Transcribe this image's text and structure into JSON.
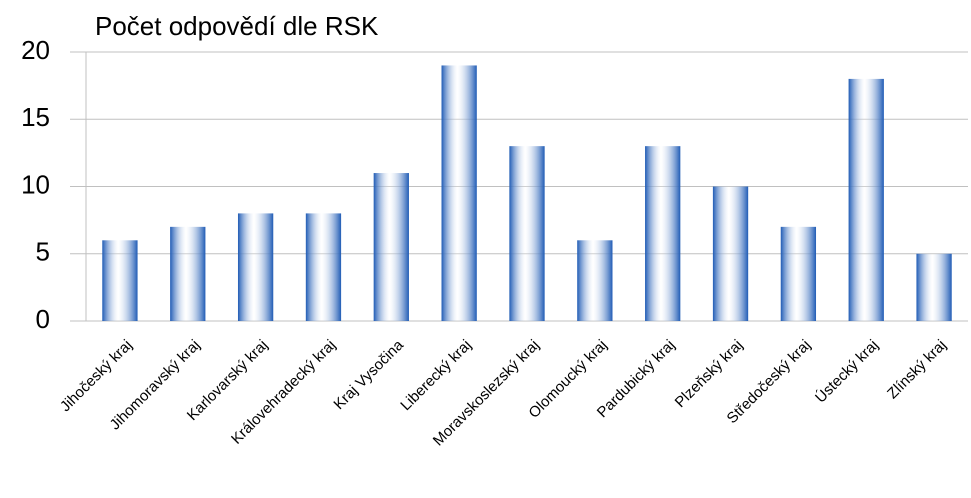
{
  "chart_data": {
    "type": "bar",
    "title": "Počet odpovědí dle RSK",
    "categories": [
      "Jihočeský kraj",
      "Jihomoravský kraj",
      "Karlovarský kraj",
      "Královehradecký kraj",
      "Kraj Vysočina",
      "Liberecký kraj",
      "Moravskoslezský kraj",
      "Olomoucký kraj",
      "Pardubický kraj",
      "Plzeňský kraj",
      "Středočeský kraj",
      "Ústecký kraj",
      "Zlínský kraj"
    ],
    "values": [
      6,
      7,
      8,
      8,
      11,
      19,
      13,
      6,
      13,
      10,
      7,
      18,
      5
    ],
    "color": "#1f5bb5",
    "ylim": [
      0,
      20
    ],
    "yticks": [
      0,
      5,
      10,
      15,
      20
    ],
    "grid": true
  }
}
